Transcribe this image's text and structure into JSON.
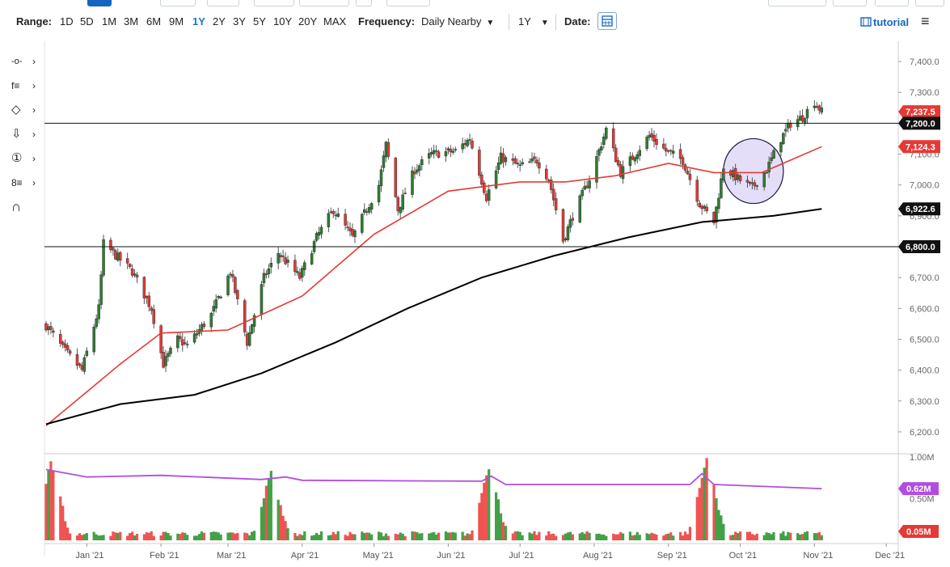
{
  "toolbar": {
    "range_label": "Range:",
    "ranges": [
      "1D",
      "5D",
      "1M",
      "3M",
      "6M",
      "9M",
      "1Y",
      "2Y",
      "3Y",
      "5Y",
      "10Y",
      "20Y",
      "MAX"
    ],
    "active_range": "1Y",
    "frequency_label": "Frequency:",
    "frequency_value": "Daily Nearby",
    "period_value": "1Y",
    "date_label": "Date:",
    "tutorial_label": "tutorial",
    "icons": {
      "calendar": "calendar-icon",
      "menu": "hamburger-menu-icon",
      "tutorial": "film-icon"
    }
  },
  "tools": [
    {
      "name": "crosshair-line-icon",
      "glyph": "-o-"
    },
    {
      "name": "fibonacci-tool-icon",
      "glyph": "f≡"
    },
    {
      "name": "shape-tool-icon",
      "glyph": "◇"
    },
    {
      "name": "arrow-down-icon",
      "glyph": "⇩"
    },
    {
      "name": "annotation-number-icon",
      "glyph": "①"
    },
    {
      "name": "measure-tool-icon",
      "glyph": "8≡"
    },
    {
      "name": "magnet-icon",
      "glyph": "∩"
    }
  ],
  "colors": {
    "up": "#2e7d32",
    "down": "#e53935",
    "ma_fast": "#e53935",
    "ma_slow": "#000000",
    "volume_ma": "#b24ddf",
    "circle_fill": "#d9d0f5",
    "price_badge": "#e53935",
    "level_badge": "#111111"
  },
  "chart_data": [
    {
      "type": "candlestick",
      "x_axis": {
        "start": "2020-12-15",
        "end": "2021-12-06",
        "labels": [
          "Jan '21",
          "Feb '21",
          "Mar '21",
          "Apr '21",
          "May '21",
          "Jun '21",
          "Jul '21",
          "Aug '21",
          "Sep '21",
          "Oct '21",
          "Nov '21",
          "Dec '21"
        ]
      },
      "y_axis": {
        "ylim": [
          6150,
          7450
        ],
        "tick_labels": [
          "7,400.0",
          "7,300.0",
          "7,200.0",
          "7,100.0",
          "7,000.0",
          "6,900.0",
          "6,800.0",
          "6,700.0",
          "6,600.0",
          "6,500.0",
          "6,400.0",
          "6,300.0",
          "6,200.0"
        ]
      },
      "series": [
        {
          "name": "",
          "kind": "close",
          "points": [
            [
              "2020-12-15",
              6545
            ],
            [
              "2020-12-22",
              6470
            ],
            [
              "2020-12-30",
              6400
            ],
            [
              "2021-01-06",
              6600
            ],
            [
              "2021-01-08",
              6810
            ],
            [
              "2021-01-20",
              6720
            ],
            [
              "2021-01-28",
              6600
            ],
            [
              "2021-02-02",
              6420
            ],
            [
              "2021-02-08",
              6500
            ],
            [
              "2021-02-12",
              6480
            ],
            [
              "2021-02-22",
              6580
            ],
            [
              "2021-03-02",
              6720
            ],
            [
              "2021-03-09",
              6490
            ],
            [
              "2021-03-16",
              6700
            ],
            [
              "2021-03-22",
              6780
            ],
            [
              "2021-03-31",
              6700
            ],
            [
              "2021-04-07",
              6830
            ],
            [
              "2021-04-14",
              6920
            ],
            [
              "2021-04-22",
              6830
            ],
            [
              "2021-05-03",
              7000
            ],
            [
              "2021-05-06",
              7130
            ],
            [
              "2021-05-11",
              6920
            ],
            [
              "2021-05-18",
              7050
            ],
            [
              "2021-05-25",
              7100
            ],
            [
              "2021-06-04",
              7110
            ],
            [
              "2021-06-10",
              7150
            ],
            [
              "2021-06-17",
              6960
            ],
            [
              "2021-06-23",
              7090
            ],
            [
              "2021-07-01",
              7060
            ],
            [
              "2021-07-08",
              7080
            ],
            [
              "2021-07-13",
              7020
            ],
            [
              "2021-07-19",
              6820
            ],
            [
              "2021-07-23",
              6900
            ],
            [
              "2021-07-30",
              7020
            ],
            [
              "2021-08-06",
              7180
            ],
            [
              "2021-08-12",
              7040
            ],
            [
              "2021-08-18",
              7100
            ],
            [
              "2021-08-24",
              7160
            ],
            [
              "2021-08-31",
              7110
            ],
            [
              "2021-09-07",
              7080
            ],
            [
              "2021-09-14",
              6940
            ],
            [
              "2021-09-20",
              6880
            ],
            [
              "2021-09-24",
              7060
            ],
            [
              "2021-09-30",
              7020
            ],
            [
              "2021-10-06",
              6990
            ],
            [
              "2021-10-12",
              7050
            ],
            [
              "2021-10-18",
              7150
            ],
            [
              "2021-10-22",
              7200
            ],
            [
              "2021-10-27",
              7220
            ],
            [
              "2021-11-01",
              7270
            ],
            [
              "2021-11-04",
              7237.5
            ]
          ]
        },
        {
          "name": "",
          "kind": "moving_average_fast",
          "points": [
            [
              "2020-12-15",
              6220
            ],
            [
              "2021-01-15",
              6420
            ],
            [
              "2021-02-01",
              6520
            ],
            [
              "2021-03-01",
              6530
            ],
            [
              "2021-04-01",
              6640
            ],
            [
              "2021-05-01",
              6840
            ],
            [
              "2021-06-01",
              6980
            ],
            [
              "2021-07-01",
              7010
            ],
            [
              "2021-07-20",
              7010
            ],
            [
              "2021-08-10",
              7030
            ],
            [
              "2021-09-01",
              7070
            ],
            [
              "2021-09-20",
              7040
            ],
            [
              "2021-10-10",
              7040
            ],
            [
              "2021-11-04",
              7124.3
            ]
          ]
        },
        {
          "name": "",
          "kind": "moving_average_slow",
          "points": [
            [
              "2020-12-15",
              6225
            ],
            [
              "2021-01-15",
              6290
            ],
            [
              "2021-02-15",
              6320
            ],
            [
              "2021-03-15",
              6390
            ],
            [
              "2021-04-15",
              6490
            ],
            [
              "2021-05-15",
              6600
            ],
            [
              "2021-06-15",
              6700
            ],
            [
              "2021-07-15",
              6770
            ],
            [
              "2021-08-15",
              6830
            ],
            [
              "2021-09-15",
              6880
            ],
            [
              "2021-10-15",
              6900
            ],
            [
              "2021-11-04",
              6922.6
            ]
          ]
        }
      ],
      "horizontal_levels": [
        7200,
        6800
      ],
      "price_badges": [
        {
          "label": "7,237.5",
          "value": 7237.5,
          "kind": "last"
        },
        {
          "label": "7,200.0",
          "value": 7200,
          "kind": "level"
        },
        {
          "label": "7,124.3",
          "value": 7124.3,
          "kind": "ma_fast"
        },
        {
          "label": "6,922.6",
          "value": 6922.6,
          "kind": "ma_slow"
        },
        {
          "label": "6,800.0",
          "value": 6800,
          "kind": "level"
        }
      ],
      "annotation": {
        "type": "ellipse",
        "from": "2021-09-24",
        "to": "2021-10-19",
        "ylow": 6940,
        "yhigh": 7150
      }
    },
    {
      "type": "bar",
      "panel": "volume",
      "y_axis": {
        "ylim": [
          0,
          1.0
        ],
        "tick_labels": [
          "1.00M",
          "0.50M"
        ]
      },
      "series": [
        {
          "name": "",
          "kind": "volume_moving_average",
          "last": 0.62,
          "points": [
            [
              "2020-12-15",
              0.85
            ],
            [
              "2021-01-01",
              0.76
            ],
            [
              "2021-02-01",
              0.78
            ],
            [
              "2021-03-15",
              0.73
            ],
            [
              "2021-03-25",
              0.76
            ],
            [
              "2021-04-01",
              0.72
            ],
            [
              "2021-06-15",
              0.71
            ],
            [
              "2021-06-19",
              0.77
            ],
            [
              "2021-06-25",
              0.67
            ],
            [
              "2021-09-10",
              0.67
            ],
            [
              "2021-09-15",
              0.8
            ],
            [
              "2021-09-20",
              0.67
            ],
            [
              "2021-11-04",
              0.62
            ]
          ]
        }
      ],
      "spikes": [
        [
          "2020-12-17",
          0.9
        ],
        [
          "2021-03-19",
          0.78
        ],
        [
          "2021-06-18",
          0.85
        ],
        [
          "2021-09-17",
          0.95
        ]
      ],
      "price_badges": [
        {
          "label": "0.62M",
          "value": 0.62,
          "kind": "volume_ma"
        },
        {
          "label": "0.05M",
          "value": 0.05,
          "kind": "last_volume"
        }
      ]
    }
  ]
}
